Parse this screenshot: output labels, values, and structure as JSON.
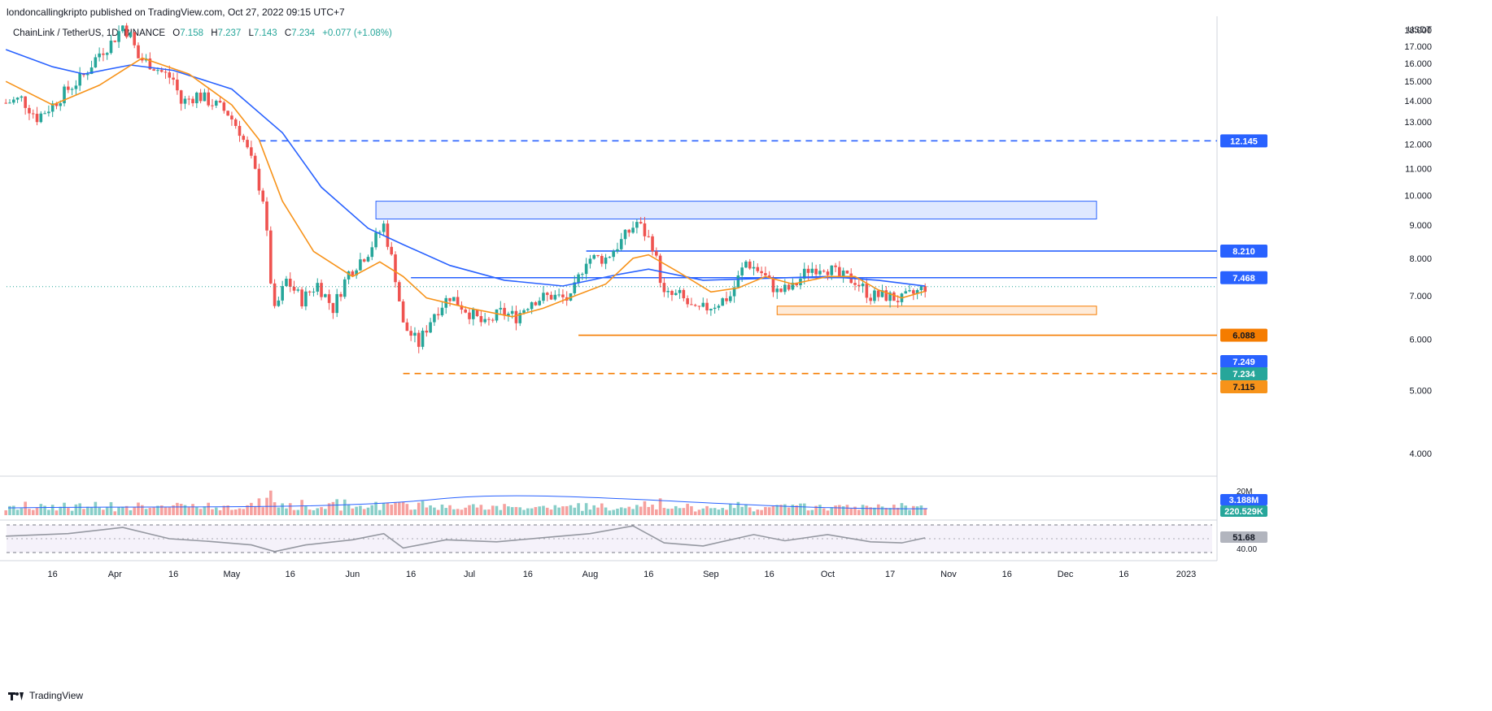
{
  "header": {
    "published": "londoncallingkripto published on TradingView.com, Oct 27, 2022 09:15 UTC+7",
    "symbol": "ChainLink / TetherUS, 1D, BINANCE",
    "o_label": "O",
    "o": "7.158",
    "h_label": "H",
    "h": "7.237",
    "l_label": "L",
    "l": "7.143",
    "c_label": "C",
    "c": "7.234",
    "change": "+0.077 (+1.08%)"
  },
  "footer": {
    "brand": "TradingView",
    "logo_icon": "tradingview-logo-icon"
  },
  "colors": {
    "up": "#26a69a",
    "down": "#ef5350",
    "ema_fast": "#f7931a",
    "ema_slow": "#2962ff",
    "blue_level": "#2962ff",
    "orange_level": "#f57c00"
  },
  "chart_data": {
    "type": "candlestick",
    "title": "ChainLink / TetherUS, 1D, BINANCE",
    "y_unit": "USDT",
    "y_ticks": [
      4,
      5,
      6,
      7,
      8,
      9,
      10,
      11,
      12,
      13,
      14,
      15,
      16,
      17,
      18
    ],
    "y_tick_labels": [
      "4.000",
      "5.000",
      "6.000",
      "7.000",
      "8.000",
      "9.000",
      "10.000",
      "11.000",
      "12.000",
      "13.000",
      "14.000",
      "15.000",
      "16.000",
      "17.000",
      "18.000"
    ],
    "ylim": [
      3.7,
      18.8
    ],
    "y_scale": "log",
    "x_ticks": [
      {
        "label": "16",
        "date": "2022-03-16"
      },
      {
        "label": "Apr",
        "date": "2022-04-01"
      },
      {
        "label": "16",
        "date": "2022-04-16"
      },
      {
        "label": "May",
        "date": "2022-05-01"
      },
      {
        "label": "16",
        "date": "2022-05-16"
      },
      {
        "label": "Jun",
        "date": "2022-06-01"
      },
      {
        "label": "16",
        "date": "2022-06-16"
      },
      {
        "label": "Jul",
        "date": "2022-07-01"
      },
      {
        "label": "16",
        "date": "2022-07-16"
      },
      {
        "label": "Aug",
        "date": "2022-08-01"
      },
      {
        "label": "16",
        "date": "2022-08-16"
      },
      {
        "label": "Sep",
        "date": "2022-09-01"
      },
      {
        "label": "16",
        "date": "2022-09-16"
      },
      {
        "label": "Oct",
        "date": "2022-10-01"
      },
      {
        "label": "17",
        "date": "2022-10-17"
      },
      {
        "label": "Nov",
        "date": "2022-11-01"
      },
      {
        "label": "16",
        "date": "2022-11-16"
      },
      {
        "label": "Dec",
        "date": "2022-12-01"
      },
      {
        "label": "16",
        "date": "2022-12-16"
      },
      {
        "label": "2023",
        "date": "2023-01-01"
      }
    ],
    "close_path": [
      [
        "2022-03-04",
        13.9
      ],
      [
        "2022-03-08",
        14.1
      ],
      [
        "2022-03-12",
        13.2
      ],
      [
        "2022-03-16",
        13.8
      ],
      [
        "2022-03-20",
        14.6
      ],
      [
        "2022-03-24",
        15.3
      ],
      [
        "2022-03-28",
        16.6
      ],
      [
        "2022-03-31",
        17.2
      ],
      [
        "2022-04-02",
        17.9
      ],
      [
        "2022-04-03",
        18.3
      ],
      [
        "2022-04-05",
        17.6
      ],
      [
        "2022-04-07",
        16.3
      ],
      [
        "2022-04-10",
        16.0
      ],
      [
        "2022-04-13",
        15.5
      ],
      [
        "2022-04-16",
        15.1
      ],
      [
        "2022-04-18",
        13.9
      ],
      [
        "2022-04-22",
        14.3
      ],
      [
        "2022-04-26",
        13.9
      ],
      [
        "2022-04-30",
        13.4
      ],
      [
        "2022-05-03",
        12.6
      ],
      [
        "2022-05-06",
        11.3
      ],
      [
        "2022-05-09",
        9.9
      ],
      [
        "2022-05-11",
        7.4
      ],
      [
        "2022-05-12",
        6.6
      ],
      [
        "2022-05-15",
        7.4
      ],
      [
        "2022-05-19",
        6.9
      ],
      [
        "2022-05-23",
        7.3
      ],
      [
        "2022-05-27",
        6.7
      ],
      [
        "2022-05-31",
        7.6
      ],
      [
        "2022-06-05",
        8.2
      ],
      [
        "2022-06-09",
        9.0
      ],
      [
        "2022-06-12",
        7.5
      ],
      [
        "2022-06-14",
        6.3
      ],
      [
        "2022-06-18",
        5.9
      ],
      [
        "2022-06-22",
        6.6
      ],
      [
        "2022-06-26",
        7.0
      ],
      [
        "2022-07-01",
        6.6
      ],
      [
        "2022-07-05",
        6.3
      ],
      [
        "2022-07-09",
        6.6
      ],
      [
        "2022-07-13",
        6.5
      ],
      [
        "2022-07-17",
        6.9
      ],
      [
        "2022-07-22",
        7.0
      ],
      [
        "2022-07-27",
        6.9
      ],
      [
        "2022-07-31",
        8.0
      ],
      [
        "2022-08-05",
        8.0
      ],
      [
        "2022-08-09",
        8.5
      ],
      [
        "2022-08-13",
        9.1
      ],
      [
        "2022-08-17",
        8.4
      ],
      [
        "2022-08-20",
        7.0
      ],
      [
        "2022-08-24",
        7.0
      ],
      [
        "2022-08-28",
        6.6
      ],
      [
        "2022-09-02",
        6.8
      ],
      [
        "2022-09-06",
        7.0
      ],
      [
        "2022-09-10",
        7.9
      ],
      [
        "2022-09-14",
        7.6
      ],
      [
        "2022-09-18",
        7.1
      ],
      [
        "2022-09-22",
        7.2
      ],
      [
        "2022-09-26",
        7.7
      ],
      [
        "2022-09-30",
        7.8
      ],
      [
        "2022-10-04",
        7.5
      ],
      [
        "2022-10-08",
        7.4
      ],
      [
        "2022-10-12",
        7.0
      ],
      [
        "2022-10-16",
        7.0
      ],
      [
        "2022-10-20",
        6.9
      ],
      [
        "2022-10-24",
        7.1
      ],
      [
        "2022-10-26",
        7.234
      ]
    ],
    "ema_fast": [
      [
        "2022-03-04",
        15.0
      ],
      [
        "2022-03-16",
        13.8
      ],
      [
        "2022-03-28",
        14.8
      ],
      [
        "2022-04-08",
        16.3
      ],
      [
        "2022-04-20",
        15.4
      ],
      [
        "2022-05-01",
        13.8
      ],
      [
        "2022-05-08",
        12.2
      ],
      [
        "2022-05-14",
        9.8
      ],
      [
        "2022-05-22",
        8.2
      ],
      [
        "2022-06-01",
        7.5
      ],
      [
        "2022-06-08",
        7.9
      ],
      [
        "2022-06-14",
        7.5
      ],
      [
        "2022-06-20",
        6.95
      ],
      [
        "2022-07-01",
        6.7
      ],
      [
        "2022-07-12",
        6.5
      ],
      [
        "2022-07-20",
        6.7
      ],
      [
        "2022-07-28",
        7.0
      ],
      [
        "2022-08-05",
        7.3
      ],
      [
        "2022-08-12",
        8.0
      ],
      [
        "2022-08-16",
        8.1
      ],
      [
        "2022-08-24",
        7.6
      ],
      [
        "2022-09-01",
        7.1
      ],
      [
        "2022-09-08",
        7.2
      ],
      [
        "2022-09-15",
        7.5
      ],
      [
        "2022-09-22",
        7.3
      ],
      [
        "2022-10-01",
        7.5
      ],
      [
        "2022-10-08",
        7.5
      ],
      [
        "2022-10-14",
        7.15
      ],
      [
        "2022-10-20",
        6.95
      ],
      [
        "2022-10-26",
        7.115
      ]
    ],
    "ema_slow": [
      [
        "2022-03-04",
        16.8
      ],
      [
        "2022-03-16",
        15.8
      ],
      [
        "2022-03-24",
        15.4
      ],
      [
        "2022-04-05",
        15.9
      ],
      [
        "2022-04-16",
        15.6
      ],
      [
        "2022-05-01",
        14.6
      ],
      [
        "2022-05-14",
        12.5
      ],
      [
        "2022-05-24",
        10.3
      ],
      [
        "2022-06-05",
        8.9
      ],
      [
        "2022-06-14",
        8.4
      ],
      [
        "2022-06-26",
        7.8
      ],
      [
        "2022-07-10",
        7.4
      ],
      [
        "2022-07-25",
        7.25
      ],
      [
        "2022-08-08",
        7.55
      ],
      [
        "2022-08-16",
        7.7
      ],
      [
        "2022-08-30",
        7.4
      ],
      [
        "2022-09-15",
        7.45
      ],
      [
        "2022-10-01",
        7.5
      ],
      [
        "2022-10-14",
        7.4
      ],
      [
        "2022-10-26",
        7.249
      ]
    ],
    "levels": [
      {
        "value": 12.145,
        "label": "12.145",
        "color": "#2962ff",
        "style": "dashed",
        "from": "2022-05-08",
        "to": "2022-12-31"
      },
      {
        "value": 8.21,
        "label": "8.210",
        "color": "#2962ff",
        "style": "solid",
        "from": "2022-07-31",
        "to": "2022-12-31"
      },
      {
        "value": 7.468,
        "label": "7.468",
        "color": "#2962ff",
        "style": "solid",
        "from": "2022-06-16",
        "to": "2022-12-31"
      },
      {
        "value": 6.088,
        "label": "6.088",
        "color": "#f57c00",
        "style": "solid",
        "from": "2022-07-29",
        "to": "2022-12-31"
      },
      {
        "value": 5.313,
        "label": "5.313",
        "color": "#f57c00",
        "style": "dashed",
        "from": "2022-06-14",
        "to": "2022-12-31"
      }
    ],
    "price_tags": [
      {
        "value": 7.249,
        "label": "7.249",
        "bg": "#2962ff",
        "fg": "#ffffff"
      },
      {
        "value": 7.234,
        "label": "7.234",
        "bg": "#26a69a",
        "fg": "#ffffff"
      },
      {
        "value": 7.115,
        "label": "7.115",
        "bg": "#f7931a",
        "fg": "#131722"
      }
    ],
    "zones": [
      {
        "from": "2022-06-07",
        "to": "2022-12-09",
        "low": 9.2,
        "high": 9.8,
        "color": "#2962ff"
      },
      {
        "from": "2022-09-18",
        "to": "2022-12-09",
        "low": 6.55,
        "high": 6.75,
        "color": "#f57c00"
      }
    ],
    "volume": {
      "tags": [
        {
          "label": "3.188M",
          "bg": "#2962ff"
        },
        {
          "label": "220.529K",
          "bg": "#26a69a"
        }
      ],
      "axis_label": "20M"
    },
    "rsi": {
      "value_label": "51.68",
      "axis_label": "40.00",
      "values": [
        [
          "2022-03-04",
          55
        ],
        [
          "2022-03-20",
          60
        ],
        [
          "2022-04-03",
          72
        ],
        [
          "2022-04-15",
          50
        ],
        [
          "2022-04-25",
          45
        ],
        [
          "2022-05-06",
          38
        ],
        [
          "2022-05-12",
          25
        ],
        [
          "2022-05-20",
          38
        ],
        [
          "2022-06-01",
          48
        ],
        [
          "2022-06-09",
          60
        ],
        [
          "2022-06-14",
          32
        ],
        [
          "2022-06-25",
          48
        ],
        [
          "2022-07-08",
          44
        ],
        [
          "2022-07-20",
          52
        ],
        [
          "2022-08-01",
          60
        ],
        [
          "2022-08-12",
          75
        ],
        [
          "2022-08-20",
          42
        ],
        [
          "2022-08-30",
          36
        ],
        [
          "2022-09-12",
          58
        ],
        [
          "2022-09-20",
          46
        ],
        [
          "2022-10-01",
          58
        ],
        [
          "2022-10-12",
          44
        ],
        [
          "2022-10-20",
          42
        ],
        [
          "2022-10-26",
          51.68
        ]
      ]
    }
  }
}
